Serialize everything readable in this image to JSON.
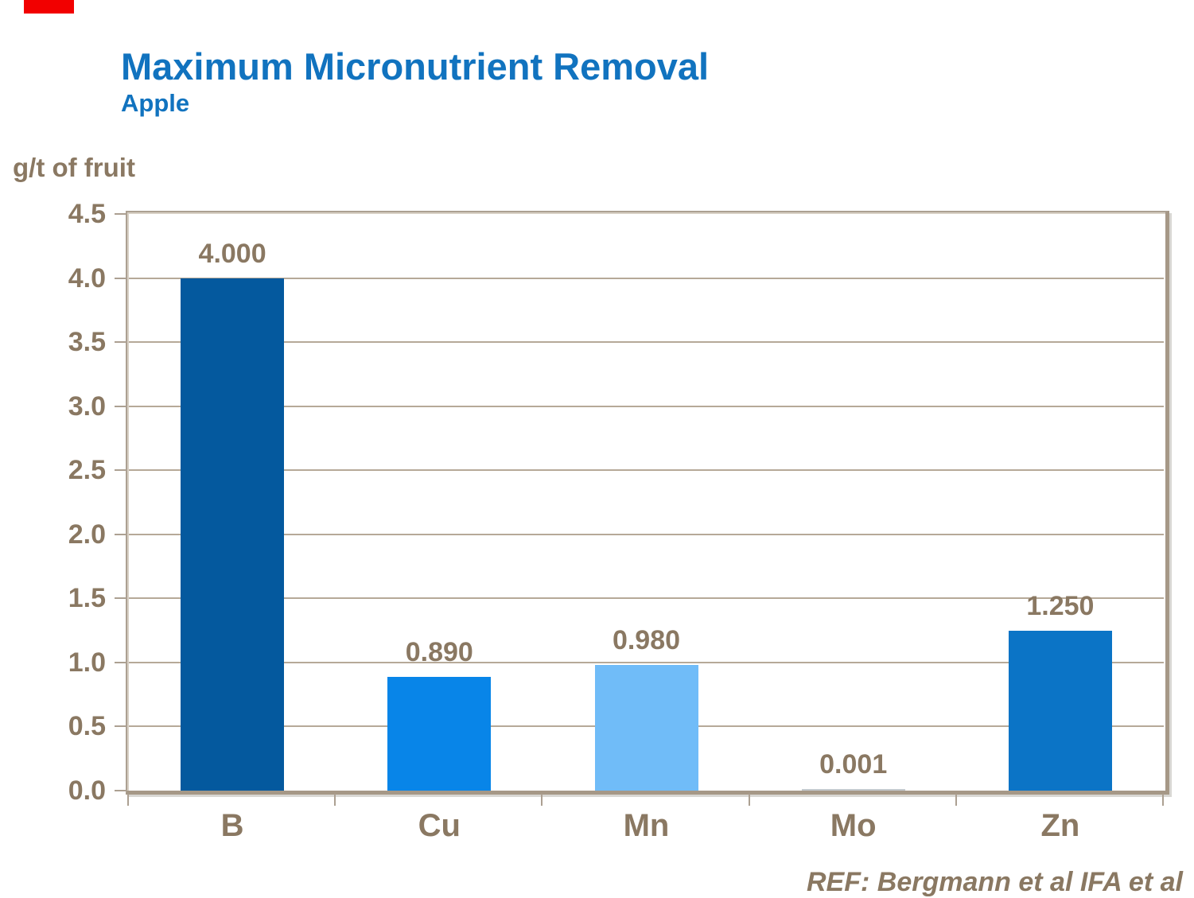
{
  "page": {
    "title": "Maximum Micronutrient Removal",
    "subtitle": "Apple",
    "unit_label": "g/t of fruit",
    "reference": "REF: Bergmann et al IFA et al"
  },
  "colors": {
    "accent_bar": "#f20000",
    "title_blue": "#1173BF",
    "label_brown": "#8A7862",
    "gridline": "#B6A998",
    "frame": "#ACA092"
  },
  "chart_data": {
    "type": "bar",
    "title": "Maximum Micronutrient Removal",
    "subtitle": "Apple",
    "ylabel": "g/t of fruit",
    "xlabel": "",
    "categories": [
      "B",
      "Cu",
      "Mn",
      "Mo",
      "Zn"
    ],
    "values": [
      4.0,
      0.89,
      0.98,
      0.001,
      1.25
    ],
    "value_labels": [
      "4.000",
      "0.890",
      "0.980",
      "0.001",
      "1.250"
    ],
    "bar_colors": [
      "#04599E",
      "#0885E8",
      "#70BCF8",
      "#C4CACE",
      "#0B74C6"
    ],
    "ylim": [
      0,
      4.5
    ],
    "ytick_step": 0.5,
    "ytick_labels": [
      "0.0",
      "0.5",
      "1.0",
      "1.5",
      "2.0",
      "2.5",
      "3.0",
      "3.5",
      "4.0",
      "4.5"
    ],
    "grid": true,
    "legend": false,
    "annotation": "REF: Bergmann et al IFA et al"
  }
}
